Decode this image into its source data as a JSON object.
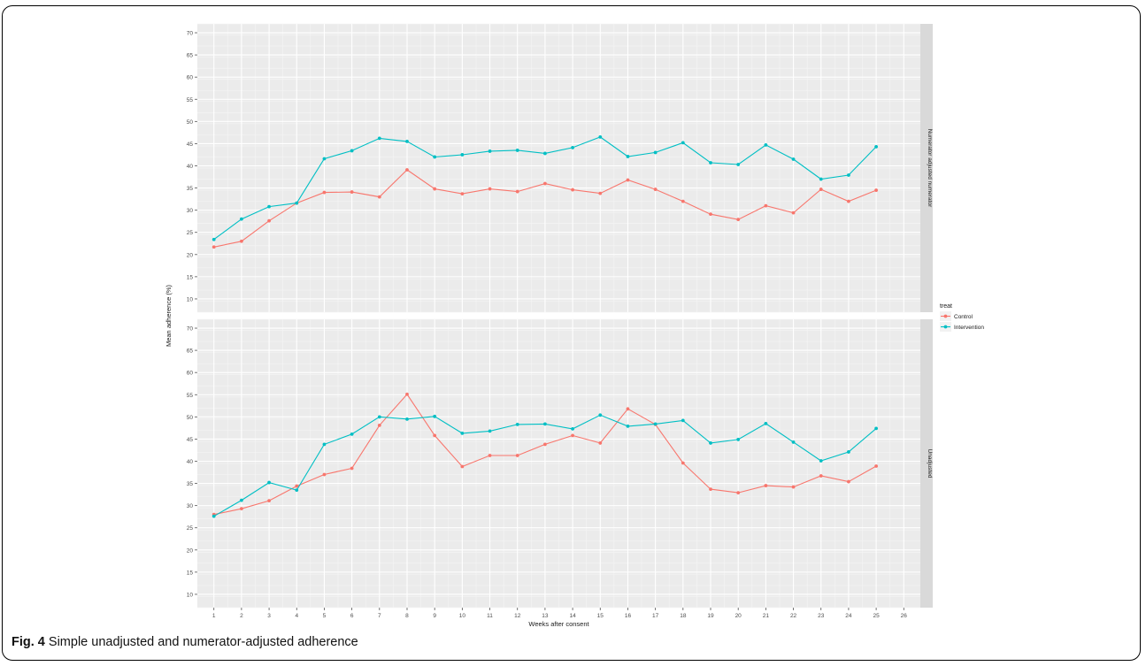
{
  "caption": {
    "label": "Fig. 4",
    "text": "Simple unadjusted and numerator-adjusted adherence"
  },
  "chart_data": {
    "type": "line",
    "xlabel": "Weeks after consent",
    "ylabel": "Mean adherence (%)",
    "x": [
      1,
      2,
      3,
      4,
      5,
      6,
      7,
      8,
      9,
      10,
      11,
      12,
      13,
      14,
      15,
      16,
      17,
      18,
      19,
      20,
      21,
      22,
      23,
      24,
      25
    ],
    "x_ticks": [
      1,
      2,
      3,
      4,
      5,
      6,
      7,
      8,
      9,
      10,
      11,
      12,
      13,
      14,
      15,
      16,
      17,
      18,
      19,
      20,
      21,
      22,
      23,
      24,
      25,
      26
    ],
    "xlim": [
      0.4,
      26.6
    ],
    "ylim": [
      7,
      72
    ],
    "y_ticks": [
      10,
      15,
      20,
      25,
      30,
      35,
      40,
      45,
      50,
      55,
      60,
      65,
      70
    ],
    "grid": true,
    "legend": {
      "title": "treat",
      "position": "right",
      "entries": [
        "Control",
        "Intervention"
      ]
    },
    "colors": {
      "Control": "#F8766D",
      "Intervention": "#00BFC4",
      "panel_bg": "#EBEBEB",
      "strip_bg": "#D9D9D9"
    },
    "panels": [
      {
        "strip": "Numerator adjusted numerator",
        "series": [
          {
            "name": "Control",
            "values": [
              21.7,
              23.0,
              27.6,
              31.6,
              34.0,
              34.1,
              33.0,
              39.1,
              34.8,
              33.7,
              34.8,
              34.2,
              36.0,
              34.6,
              33.8,
              36.8,
              34.7,
              32.0,
              29.1,
              27.9,
              31.0,
              29.4,
              34.7,
              32.0,
              34.5
            ]
          },
          {
            "name": "Intervention",
            "values": [
              23.4,
              28.0,
              30.8,
              31.6,
              41.6,
              43.4,
              46.2,
              45.5,
              42.0,
              42.5,
              43.3,
              43.5,
              42.8,
              44.1,
              46.5,
              42.1,
              43.0,
              45.2,
              40.7,
              40.3,
              44.7,
              41.5,
              37.0,
              37.9,
              44.3
            ]
          }
        ]
      },
      {
        "strip": "Unadjusted",
        "series": [
          {
            "name": "Control",
            "values": [
              28.0,
              29.3,
              31.1,
              34.4,
              37.0,
              38.4,
              48.1,
              55.1,
              45.8,
              38.8,
              41.3,
              41.3,
              43.8,
              45.8,
              44.1,
              51.8,
              48.3,
              39.6,
              33.7,
              32.9,
              34.5,
              34.2,
              36.7,
              35.4,
              38.9
            ]
          },
          {
            "name": "Intervention",
            "values": [
              27.6,
              31.2,
              35.2,
              33.5,
              43.8,
              46.1,
              50.0,
              49.5,
              50.1,
              46.3,
              46.8,
              48.3,
              48.4,
              47.3,
              50.4,
              47.9,
              48.4,
              49.2,
              44.1,
              44.9,
              48.5,
              44.3,
              40.1,
              42.1,
              47.4
            ]
          }
        ]
      }
    ]
  }
}
